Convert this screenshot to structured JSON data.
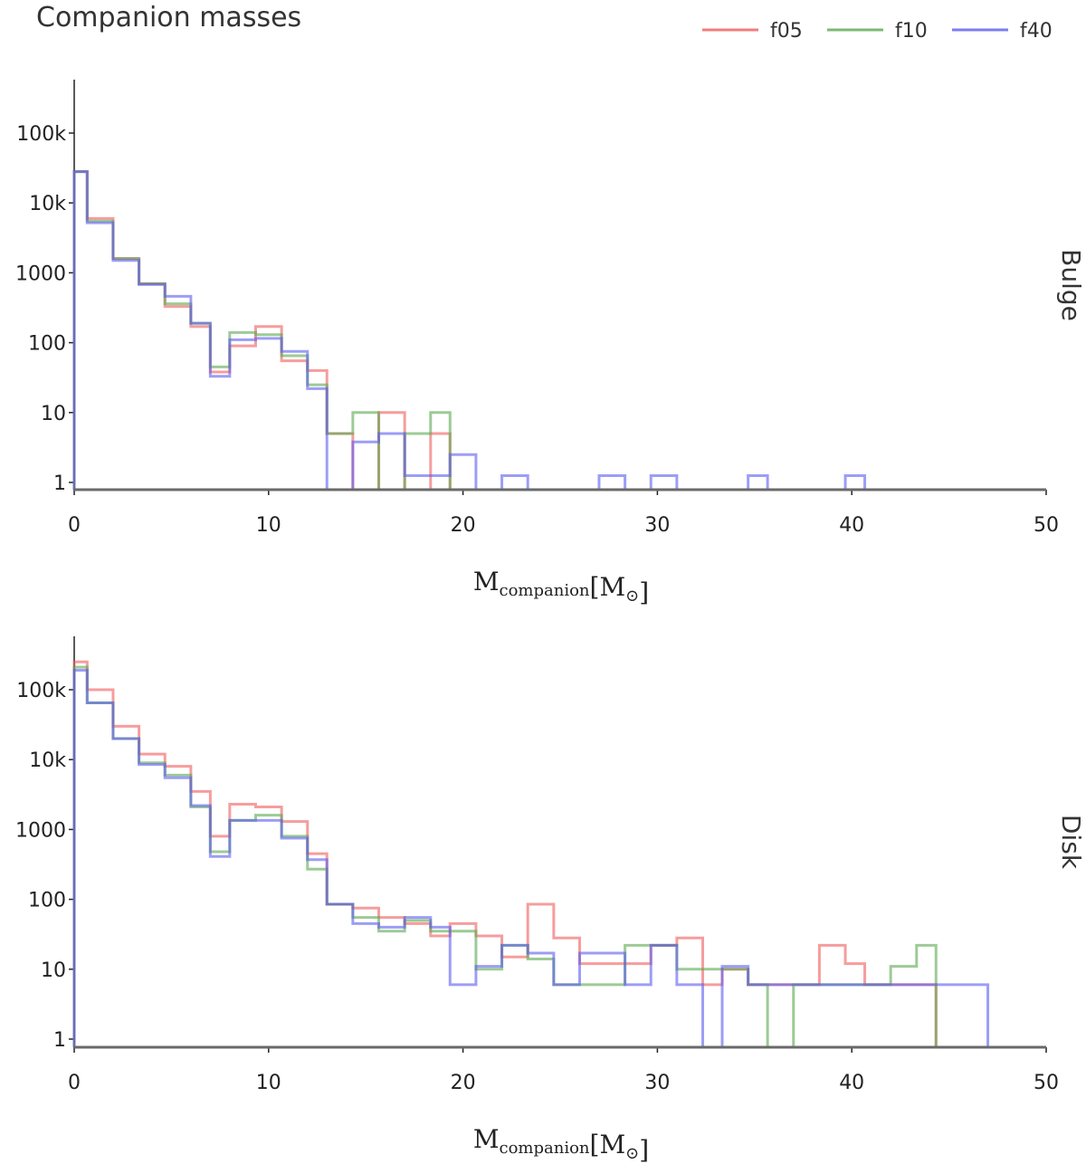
{
  "title": "Companion masses",
  "chart_data": {
    "type": "step-histogram",
    "title": "Companion masses",
    "xlabel": "M_companion [M_⊙]",
    "xlabel_main": "M",
    "xlabel_sub": "companion",
    "xlabel_unit_open": "[M",
    "xlabel_unit_sub": "⊙",
    "xlabel_unit_close": "]",
    "ylabel": "",
    "yscale": "log",
    "xlim": [
      0,
      50
    ],
    "ylim": [
      0.9,
      600000
    ],
    "xticks": [
      0,
      10,
      20,
      30,
      40,
      50
    ],
    "yticks": [
      1,
      10,
      100,
      1000,
      10000,
      100000
    ],
    "ytick_labels": [
      "1",
      "10",
      "100",
      "1000",
      "10k",
      "100k"
    ],
    "bin_edges": [
      0,
      0.667,
      2.0,
      3.333,
      4.667,
      6.0,
      7.0,
      8.0,
      9.333,
      10.667,
      12.0,
      13.0,
      14.333,
      15.667,
      17.0,
      18.333,
      19.333,
      20.667,
      22.0,
      23.333,
      24.667,
      26.0,
      27.0,
      28.333,
      29.667,
      31.0,
      32.333,
      33.333,
      34.667,
      35.667,
      37.0,
      38.333,
      39.667,
      40.667,
      42.0,
      43.333,
      44.333,
      45.667,
      47.0
    ],
    "legend": {
      "position": "top-right",
      "entries": [
        {
          "name": "f05",
          "color": "#f05b5b"
        },
        {
          "name": "f10",
          "color": "#5aa84f"
        },
        {
          "name": "f40",
          "color": "#5b5bf0"
        }
      ]
    },
    "panels": [
      {
        "name": "Bulge",
        "series": [
          {
            "name": "f05",
            "color": "#f05b5b",
            "values": [
              28000,
              6000,
              1600,
              700,
              330,
              170,
              38,
              90,
              170,
              55,
              40,
              5,
              0,
              10,
              0,
              5,
              0,
              0,
              0,
              0,
              0,
              0,
              0,
              0,
              0,
              0,
              0,
              0,
              0,
              0,
              0,
              0,
              0,
              0,
              0,
              0,
              0,
              0
            ]
          },
          {
            "name": "f10",
            "color": "#5aa84f",
            "values": [
              28000,
              5500,
              1600,
              700,
              360,
              190,
              45,
              140,
              130,
              65,
              25,
              5,
              10,
              0,
              5,
              10,
              0,
              0,
              0,
              0,
              0,
              0,
              0,
              0,
              0,
              0,
              0,
              0,
              0,
              0,
              0,
              0,
              0,
              0,
              0,
              0,
              0,
              0
            ]
          },
          {
            "name": "f40",
            "color": "#5b5bf0",
            "values": [
              28000,
              5200,
              1500,
              680,
              460,
              190,
              33,
              110,
              115,
              75,
              22,
              0,
              3.8,
              5,
              1.25,
              1.25,
              2.5,
              0,
              1.25,
              0,
              0,
              0,
              1.25,
              0,
              1.25,
              0,
              0,
              0,
              1.25,
              0,
              0,
              0,
              1.25,
              0,
              0,
              0,
              0,
              0
            ]
          }
        ]
      },
      {
        "name": "Disk",
        "series": [
          {
            "name": "f05",
            "color": "#f05b5b",
            "values": [
              250000,
              100000,
              30000,
              12000,
              8000,
              3500,
              800,
              2300,
              2100,
              1300,
              450,
              85,
              75,
              55,
              45,
              30,
              45,
              30,
              15,
              85,
              28,
              12,
              12,
              12,
              22,
              28,
              6,
              10,
              6,
              6,
              6,
              22,
              12,
              6,
              6,
              6,
              0,
              0
            ]
          },
          {
            "name": "f10",
            "color": "#5aa84f",
            "values": [
              210000,
              65000,
              20000,
              9000,
              6000,
              2100,
              480,
              1350,
              1600,
              800,
              270,
              85,
              55,
              35,
              50,
              35,
              35,
              10,
              22,
              14,
              6,
              6,
              6,
              22,
              22,
              10,
              10,
              10,
              6,
              0,
              6,
              6,
              6,
              6,
              11,
              22,
              0,
              0
            ]
          },
          {
            "name": "f40",
            "color": "#5b5bf0",
            "values": [
              190000,
              65000,
              20000,
              8500,
              5500,
              2200,
              410,
              1350,
              1350,
              750,
              370,
              85,
              45,
              40,
              55,
              40,
              6,
              11,
              22,
              17,
              6,
              17,
              17,
              6,
              22,
              6,
              0,
              11,
              6,
              6,
              6,
              6,
              6,
              6,
              6,
              6,
              6,
              6
            ]
          }
        ]
      }
    ]
  }
}
